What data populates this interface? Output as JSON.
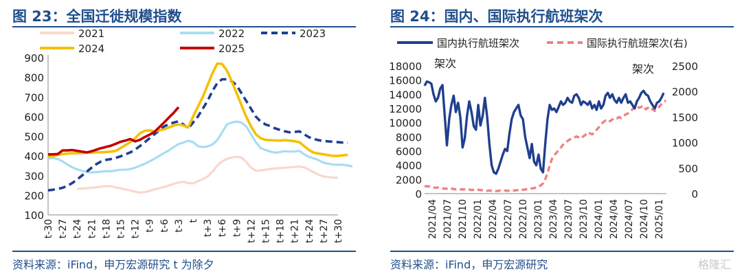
{
  "left": {
    "title": "图 23：全国迁徙规模指数",
    "source": "资料来源：iFind，申万宏源研究  t 为除夕"
  },
  "right": {
    "title": "图 24：国内、国际执行航班架次",
    "source": "资料来源：iFind，申万宏源研究",
    "watermark": "格隆汇"
  },
  "chart_data": [
    {
      "type": "line",
      "title": "图 23：全国迁徙规模指数",
      "xlabel": "",
      "ylabel": "",
      "ylim": [
        100,
        900
      ],
      "yticks": [
        "100",
        "200",
        "300",
        "400",
        "500",
        "600",
        "700",
        "800",
        "900"
      ],
      "xticks": [
        "t-30",
        "t-27",
        "t-24",
        "t-21",
        "t-18",
        "t-15",
        "t-12",
        "t-9",
        "t-6",
        "t-3",
        "t",
        "t+3",
        "t+6",
        "t+9",
        "t+12",
        "t+15",
        "t+18",
        "t+21",
        "t+24",
        "t+27",
        "t+30"
      ],
      "x_start": -30,
      "legend": "top",
      "series": [
        {
          "name": "2021",
          "color": "#f8d8cc",
          "style": "solid",
          "values": [
            null,
            null,
            null,
            null,
            null,
            null,
            232,
            234,
            236,
            238,
            240,
            244,
            246,
            246,
            240,
            235,
            230,
            224,
            218,
            214,
            216,
            222,
            230,
            236,
            242,
            250,
            258,
            265,
            268,
            262,
            260,
            272,
            282,
            295,
            320,
            350,
            372,
            385,
            392,
            396,
            392,
            370,
            340,
            325,
            326,
            330,
            334,
            336,
            338,
            340,
            342,
            344,
            346,
            342,
            330,
            316,
            304,
            296,
            292,
            290,
            289
          ]
        },
        {
          "name": "2022",
          "color": "#a9dcf2",
          "style": "solid",
          "values": [
            388,
            390,
            384,
            372,
            356,
            342,
            332,
            324,
            318,
            316,
            318,
            320,
            323,
            322,
            326,
            330,
            330,
            333,
            340,
            350,
            360,
            372,
            386,
            400,
            415,
            428,
            445,
            460,
            468,
            478,
            470,
            450,
            445,
            448,
            458,
            480,
            520,
            560,
            570,
            575,
            570,
            550,
            510,
            470,
            440,
            430,
            422,
            416,
            420,
            424,
            422,
            422,
            426,
            408,
            395,
            388,
            378,
            366,
            360,
            356,
            355,
            355,
            352,
            346
          ]
        },
        {
          "name": "2023",
          "color": "#1f3f8f",
          "style": "dashed",
          "values": [
            225,
            228,
            232,
            238,
            248,
            262,
            280,
            300,
            320,
            340,
            358,
            372,
            380,
            384,
            390,
            398,
            408,
            418,
            432,
            450,
            470,
            490,
            510,
            530,
            550,
            562,
            570,
            576,
            560,
            540,
            570,
            600,
            640,
            680,
            730,
            770,
            790,
            790,
            780,
            760,
            720,
            680,
            640,
            600,
            575,
            560,
            552,
            540,
            532,
            525,
            520,
            522,
            525,
            510,
            495,
            486,
            480,
            476,
            474,
            472,
            470,
            468,
            466
          ]
        },
        {
          "name": "2024",
          "color": "#f5c000",
          "style": "solid",
          "values": [
            396,
            400,
            405,
            410,
            412,
            414,
            414,
            415,
            416,
            417,
            418,
            419,
            420,
            422,
            426,
            440,
            455,
            470,
            490,
            515,
            528,
            530,
            525,
            530,
            535,
            545,
            555,
            560,
            555,
            545,
            600,
            650,
            700,
            760,
            820,
            870,
            868,
            835,
            780,
            720,
            660,
            600,
            550,
            510,
            490,
            482,
            480,
            479,
            478,
            480,
            478,
            475,
            470,
            450,
            430,
            416,
            412,
            408,
            404,
            400,
            400,
            403,
            406
          ]
        },
        {
          "name": "2025",
          "color": "#c00000",
          "style": "solid",
          "values": [
            408,
            408,
            410,
            428,
            428,
            430,
            426,
            422,
            418,
            424,
            432,
            440,
            446,
            452,
            462,
            472,
            478,
            486,
            474,
            482,
            496,
            508,
            522,
            546,
            570,
            595,
            620,
            648
          ]
        }
      ]
    },
    {
      "type": "line",
      "title": "图 24：国内、国际执行航班架次",
      "xlabel": "",
      "ylabel": "架次",
      "ylabel_right": "架次",
      "ylim": [
        0,
        18000
      ],
      "ylim_right": [
        0,
        2500
      ],
      "yticks": [
        "0",
        "2000",
        "4000",
        "6000",
        "8000",
        "10000",
        "12000",
        "14000",
        "16000",
        "18000"
      ],
      "yticks_right": [
        "0",
        "500",
        "1000",
        "1500",
        "2000",
        "2500"
      ],
      "xticks": [
        "2021/04",
        "2021/07",
        "2021/10",
        "2022/01",
        "2022/04",
        "2022/07",
        "2022/10",
        "2023/01",
        "2023/04",
        "2023/07",
        "2023/10",
        "2024/01",
        "2024/04",
        "2024/07",
        "2024/10",
        "2025/01"
      ],
      "legend": "top",
      "series": [
        {
          "name": "国内执行航班架次",
          "color": "#1f3f8f",
          "style": "solid",
          "axis": "left",
          "values": [
            15200,
            15800,
            15700,
            15500,
            14000,
            13000,
            13500,
            14800,
            15300,
            11000,
            6800,
            10500,
            12500,
            13800,
            11500,
            12800,
            10800,
            6500,
            7800,
            11000,
            13000,
            11500,
            9500,
            9000,
            12500,
            9600,
            11000,
            13500,
            10800,
            7000,
            4000,
            3000,
            2800,
            3500,
            4500,
            5500,
            6300,
            6000,
            8500,
            10500,
            11500,
            12000,
            12500,
            11000,
            10500,
            8000,
            6500,
            5000,
            7000,
            4500,
            4000,
            5500,
            3500,
            3000,
            7000,
            10500,
            12500,
            11800,
            12000,
            11500,
            12200,
            13000,
            12500,
            12800,
            13500,
            13000,
            12800,
            13800,
            14000,
            13500,
            12500,
            13000,
            12800,
            12500,
            13000,
            12000,
            12500,
            11800,
            13000,
            12000,
            12500,
            13800,
            14200,
            13500,
            14000,
            13200,
            12800,
            13500,
            12800,
            13500,
            14000,
            12800,
            13000,
            12500,
            12000,
            13000,
            13500,
            14200,
            14500,
            14000,
            13800,
            13000,
            12500,
            12000,
            12800,
            13000,
            13500,
            14200
          ]
        },
        {
          "name": "国际执行航班架次(右)",
          "color": "#f08080",
          "style": "dashed",
          "axis": "right",
          "values": [
            140,
            145,
            140,
            135,
            120,
            115,
            120,
            110,
            100,
            100,
            95,
            105,
            100,
            90,
            80,
            90,
            85,
            80,
            85,
            80,
            80,
            70,
            75,
            70,
            75,
            70,
            65,
            60,
            55,
            60,
            55,
            55,
            50,
            55,
            60,
            55,
            60,
            55,
            60,
            65,
            60,
            65,
            70,
            65,
            75,
            80,
            90,
            100,
            100,
            110,
            120,
            140,
            160,
            200,
            280,
            400,
            550,
            680,
            750,
            800,
            850,
            900,
            960,
            1000,
            1030,
            1060,
            1080,
            1100,
            1120,
            1100,
            1080,
            1120,
            1150,
            1200,
            1180,
            1160,
            1200,
            1250,
            1300,
            1360,
            1400,
            1430,
            1400,
            1420,
            1450,
            1480,
            1470,
            1500,
            1480,
            1520,
            1550,
            1570,
            1600,
            1650,
            1700,
            1720,
            1680,
            1700,
            1720,
            1650,
            1680,
            1700,
            1650,
            1620,
            1650,
            1700,
            1750,
            1800,
            1820
          ]
        }
      ]
    }
  ]
}
